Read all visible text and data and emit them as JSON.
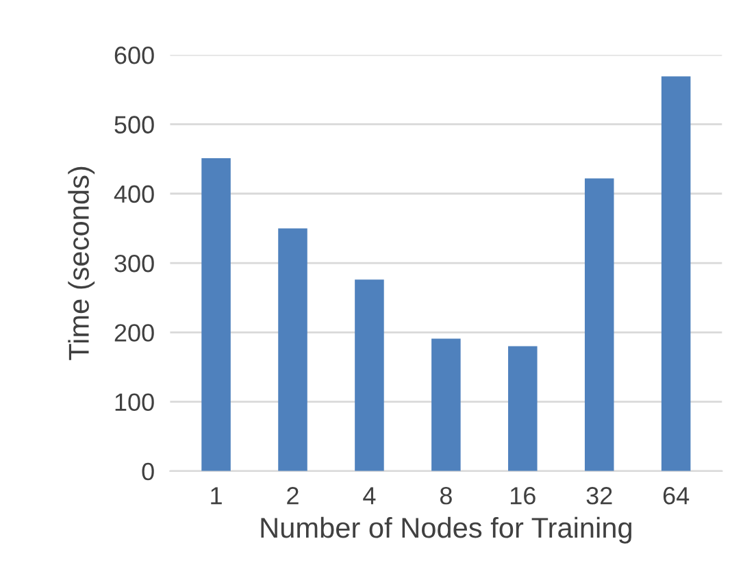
{
  "chart_data": {
    "type": "bar",
    "xlabel": "Number of Nodes for Training",
    "ylabel": "Time (seconds)",
    "categories": [
      "1",
      "2",
      "4",
      "8",
      "16",
      "32",
      "64"
    ],
    "values": [
      451,
      350,
      276,
      191,
      180,
      422,
      569
    ],
    "color": "#4f81bd",
    "ylim": [
      0,
      600
    ],
    "yticks": [
      0,
      100,
      200,
      300,
      400,
      500,
      600
    ],
    "grid": "y",
    "legend": false
  }
}
